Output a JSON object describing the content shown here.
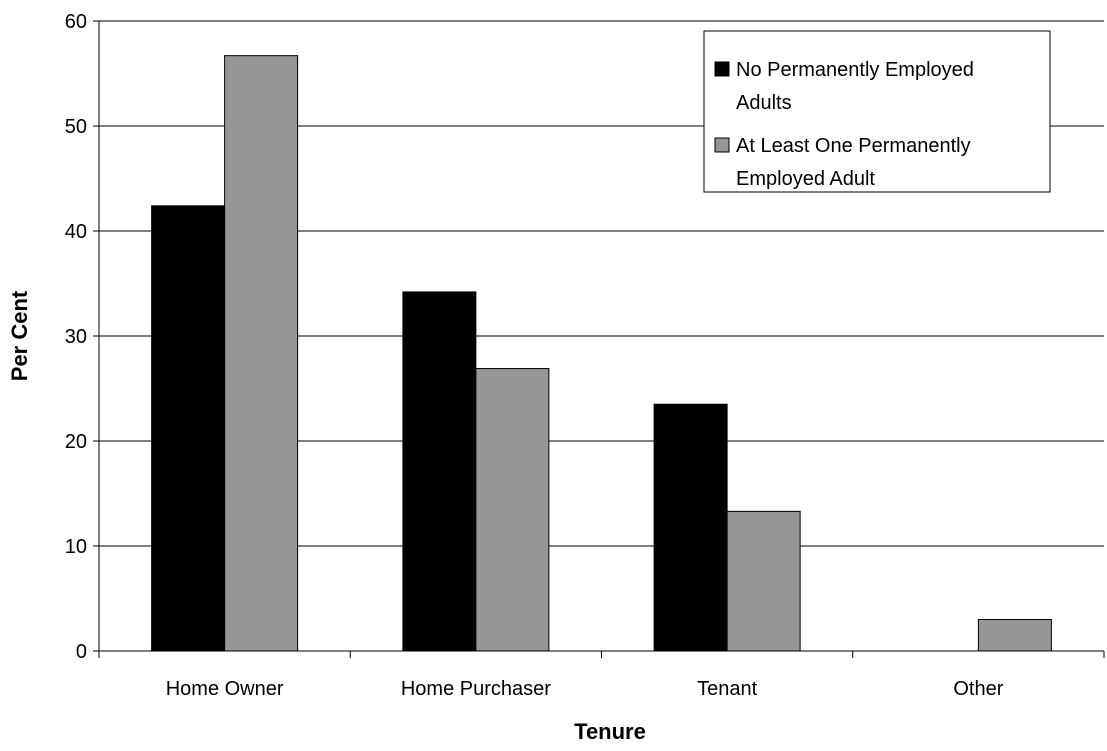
{
  "chart_data": {
    "type": "bar",
    "title": "",
    "xlabel": "Tenure",
    "ylabel": "Per Cent",
    "categories": [
      "Home Owner",
      "Home Purchaser",
      "Tenant",
      "Other"
    ],
    "series": [
      {
        "name": "No Permanently Employed Adults",
        "legend_lines": [
          "No Permanently Employed",
          "Adults"
        ],
        "color": "#000000",
        "values": [
          42.4,
          34.2,
          23.5,
          0
        ]
      },
      {
        "name": "At Least One Permanently Employed Adult",
        "legend_lines": [
          "At Least One Permanently",
          "Employed Adult"
        ],
        "color": "#969696",
        "values": [
          56.7,
          26.9,
          13.3,
          3.0
        ]
      }
    ],
    "ylim": [
      0,
      60
    ],
    "yticks": [
      0,
      10,
      20,
      30,
      40,
      50,
      60
    ],
    "grid": true,
    "legend_position": "top-right"
  }
}
